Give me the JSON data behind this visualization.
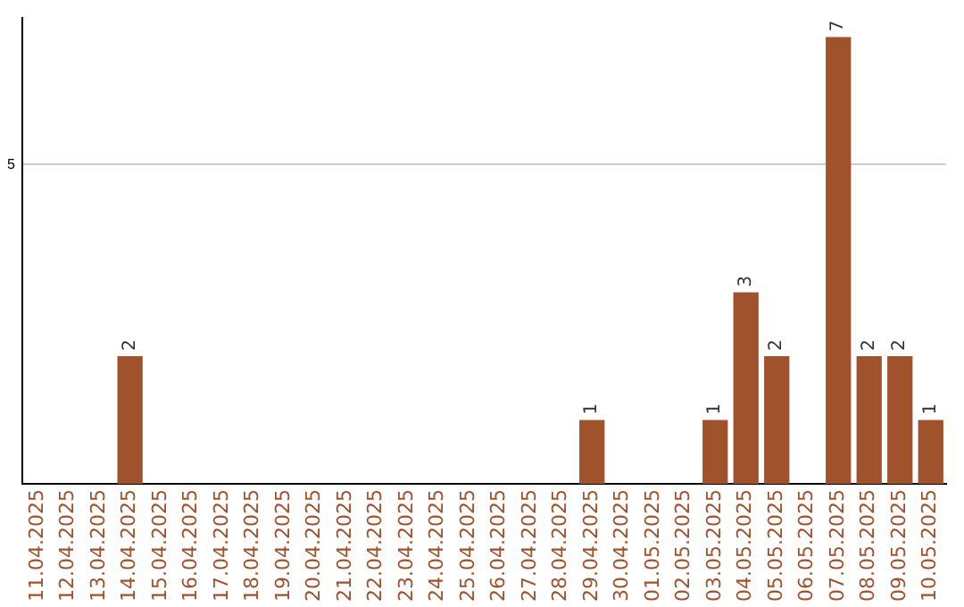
{
  "chart_data": {
    "type": "bar",
    "categories": [
      "11.04.2025",
      "12.04.2025",
      "13.04.2025",
      "14.04.2025",
      "15.04.2025",
      "16.04.2025",
      "17.04.2025",
      "18.04.2025",
      "19.04.2025",
      "20.04.2025",
      "21.04.2025",
      "22.04.2025",
      "23.04.2025",
      "24.04.2025",
      "25.04.2025",
      "26.04.2025",
      "27.04.2025",
      "28.04.2025",
      "29.04.2025",
      "30.04.2025",
      "01.05.2025",
      "02.05.2025",
      "03.05.2025",
      "04.05.2025",
      "05.05.2025",
      "06.05.2025",
      "07.05.2025",
      "08.05.2025",
      "09.05.2025",
      "10.05.2025"
    ],
    "values": [
      0,
      0,
      0,
      2,
      0,
      0,
      0,
      0,
      0,
      0,
      0,
      0,
      0,
      0,
      0,
      0,
      0,
      0,
      1,
      0,
      0,
      0,
      1,
      3,
      2,
      0,
      7,
      2,
      2,
      1
    ],
    "value_labels": [
      null,
      null,
      null,
      "2",
      null,
      null,
      null,
      null,
      null,
      null,
      null,
      null,
      null,
      null,
      null,
      null,
      null,
      null,
      "1",
      null,
      null,
      null,
      "1",
      "3",
      "2",
      null,
      "7",
      "2",
      "2",
      "1"
    ],
    "color": "#a0522d",
    "ylim": [
      0,
      7.3
    ],
    "yticks": [
      5
    ],
    "grid": "y",
    "legend": false
  }
}
